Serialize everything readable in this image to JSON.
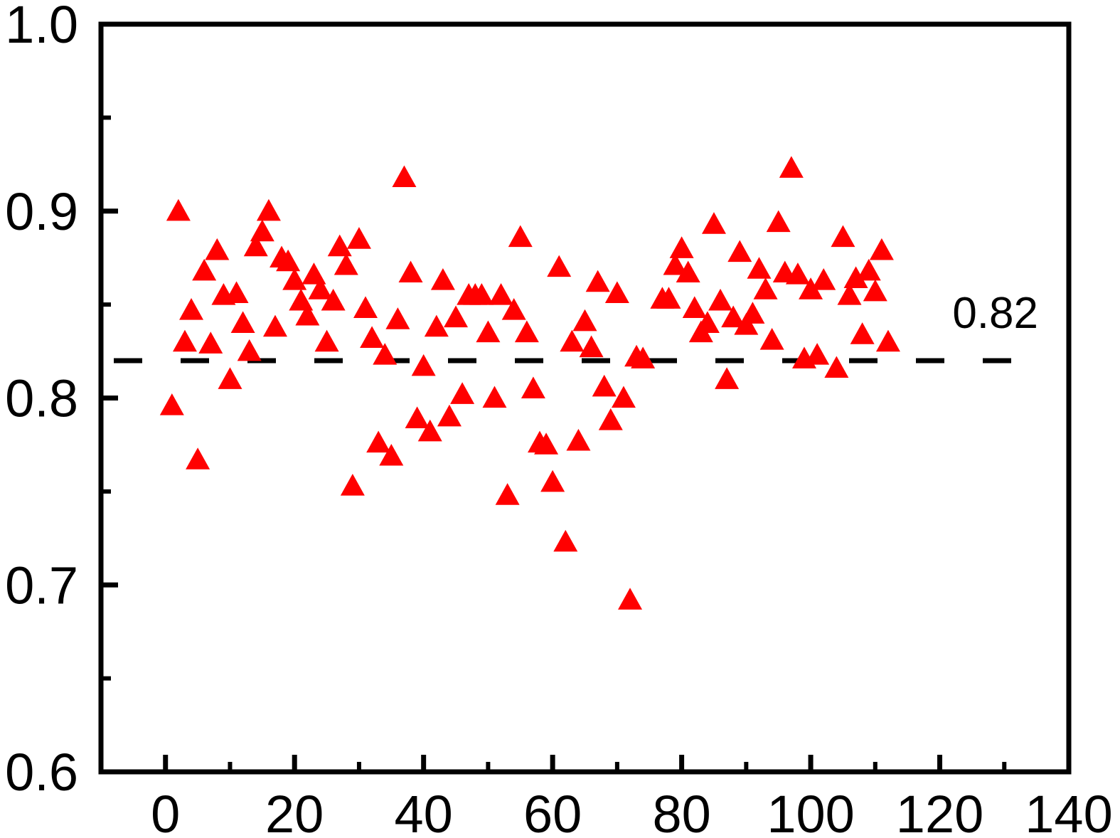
{
  "chart_data": {
    "type": "scatter",
    "title": "",
    "xlabel": "",
    "ylabel": "",
    "xlim": [
      -10,
      140
    ],
    "ylim": [
      0.6,
      1.0
    ],
    "x_ticks": [
      0,
      20,
      40,
      60,
      80,
      100,
      120,
      140
    ],
    "x_tick_labels": [
      "0",
      "20",
      "40",
      "60",
      "80",
      "100",
      "120",
      "140"
    ],
    "y_ticks": [
      0.6,
      0.7,
      0.8,
      0.9,
      1.0
    ],
    "y_tick_labels": [
      "0.6",
      "0.7",
      "0.8",
      "0.9",
      "1.0"
    ],
    "grid": false,
    "marker": "triangle",
    "marker_color": "#ff0000",
    "reference_line": {
      "y": 0.82,
      "style": "dashed",
      "color": "#000000",
      "label": "0.82"
    },
    "series": [
      {
        "points": [
          [
            1,
            0.796
          ],
          [
            2,
            0.9
          ],
          [
            3,
            0.83
          ],
          [
            4,
            0.847
          ],
          [
            5,
            0.767
          ],
          [
            6,
            0.868
          ],
          [
            7,
            0.829
          ],
          [
            8,
            0.879
          ],
          [
            9,
            0.855
          ],
          [
            10,
            0.81
          ],
          [
            11,
            0.856
          ],
          [
            12,
            0.84
          ],
          [
            13,
            0.825
          ],
          [
            14,
            0.881
          ],
          [
            15,
            0.889
          ],
          [
            16,
            0.9
          ],
          [
            17,
            0.838
          ],
          [
            18,
            0.875
          ],
          [
            19,
            0.873
          ],
          [
            20,
            0.863
          ],
          [
            21,
            0.852
          ],
          [
            22,
            0.844
          ],
          [
            23,
            0.866
          ],
          [
            24,
            0.858
          ],
          [
            25,
            0.83
          ],
          [
            26,
            0.852
          ],
          [
            27,
            0.881
          ],
          [
            28,
            0.871
          ],
          [
            29,
            0.753
          ],
          [
            30,
            0.885
          ],
          [
            31,
            0.848
          ],
          [
            32,
            0.832
          ],
          [
            33,
            0.776
          ],
          [
            34,
            0.823
          ],
          [
            35,
            0.769
          ],
          [
            36,
            0.842
          ],
          [
            37,
            0.918
          ],
          [
            38,
            0.867
          ],
          [
            39,
            0.789
          ],
          [
            40,
            0.817
          ],
          [
            41,
            0.782
          ],
          [
            42,
            0.838
          ],
          [
            43,
            0.863
          ],
          [
            44,
            0.79
          ],
          [
            45,
            0.843
          ],
          [
            46,
            0.802
          ],
          [
            47,
            0.855
          ],
          [
            48,
            0.855
          ],
          [
            49,
            0.855
          ],
          [
            50,
            0.835
          ],
          [
            51,
            0.8
          ],
          [
            52,
            0.855
          ],
          [
            53,
            0.748
          ],
          [
            54,
            0.847
          ],
          [
            55,
            0.886
          ],
          [
            56,
            0.835
          ],
          [
            57,
            0.805
          ],
          [
            58,
            0.776
          ],
          [
            59,
            0.775
          ],
          [
            60,
            0.755
          ],
          [
            61,
            0.87
          ],
          [
            62,
            0.723
          ],
          [
            63,
            0.83
          ],
          [
            64,
            0.777
          ],
          [
            65,
            0.841
          ],
          [
            66,
            0.827
          ],
          [
            67,
            0.862
          ],
          [
            68,
            0.806
          ],
          [
            69,
            0.788
          ],
          [
            70,
            0.856
          ],
          [
            71,
            0.8
          ],
          [
            72,
            0.692
          ],
          [
            73,
            0.822
          ],
          [
            74,
            0.821
          ],
          [
            77,
            0.853
          ],
          [
            78,
            0.853
          ],
          [
            79,
            0.871
          ],
          [
            80,
            0.88
          ],
          [
            81,
            0.867
          ],
          [
            82,
            0.848
          ],
          [
            83,
            0.835
          ],
          [
            84,
            0.84
          ],
          [
            85,
            0.893
          ],
          [
            86,
            0.852
          ],
          [
            87,
            0.81
          ],
          [
            88,
            0.843
          ],
          [
            89,
            0.878
          ],
          [
            90,
            0.839
          ],
          [
            91,
            0.845
          ],
          [
            92,
            0.869
          ],
          [
            93,
            0.858
          ],
          [
            94,
            0.831
          ],
          [
            95,
            0.894
          ],
          [
            96,
            0.867
          ],
          [
            97,
            0.923
          ],
          [
            98,
            0.866
          ],
          [
            99,
            0.821
          ],
          [
            100,
            0.858
          ],
          [
            101,
            0.823
          ],
          [
            102,
            0.863
          ],
          [
            104,
            0.816
          ],
          [
            105,
            0.886
          ],
          [
            106,
            0.855
          ],
          [
            107,
            0.864
          ],
          [
            108,
            0.834
          ],
          [
            109,
            0.868
          ],
          [
            110,
            0.857
          ],
          [
            111,
            0.879
          ],
          [
            112,
            0.83
          ]
        ]
      }
    ]
  }
}
